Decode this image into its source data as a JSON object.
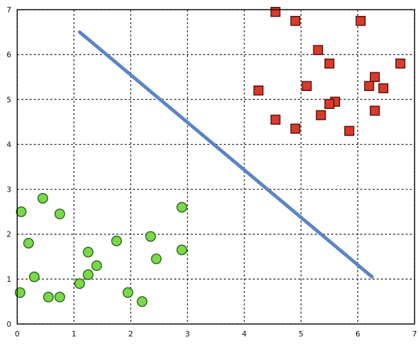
{
  "chart_data": {
    "type": "scatter",
    "title": "",
    "xlabel": "",
    "ylabel": "",
    "xlim": [
      0,
      7
    ],
    "ylim": [
      0,
      7
    ],
    "xticks": [
      "0",
      "1",
      "2",
      "3",
      "4",
      "5",
      "6",
      "7"
    ],
    "yticks": [
      "0",
      "1",
      "2",
      "3",
      "4",
      "5",
      "6",
      "7"
    ],
    "grid": true,
    "series": [
      {
        "marker": "circle",
        "color": "#7ad84a",
        "stroke": "#2f6b1e",
        "points": [
          [
            0.07,
            2.5
          ],
          [
            0.45,
            2.8
          ],
          [
            0.2,
            1.8
          ],
          [
            0.3,
            1.05
          ],
          [
            0.05,
            0.7
          ],
          [
            0.55,
            0.6
          ],
          [
            0.75,
            0.6
          ],
          [
            0.75,
            2.45
          ],
          [
            1.1,
            0.9
          ],
          [
            1.25,
            1.1
          ],
          [
            1.25,
            1.6
          ],
          [
            1.4,
            1.3
          ],
          [
            1.75,
            1.85
          ],
          [
            1.95,
            0.7
          ],
          [
            2.2,
            0.5
          ],
          [
            2.35,
            1.95
          ],
          [
            2.45,
            1.45
          ],
          [
            2.9,
            2.6
          ],
          [
            2.9,
            1.65
          ]
        ]
      },
      {
        "marker": "square",
        "color": "#d93a2b",
        "stroke": "#5a120c",
        "points": [
          [
            4.55,
            6.95
          ],
          [
            4.9,
            6.75
          ],
          [
            6.05,
            6.75
          ],
          [
            5.3,
            6.1
          ],
          [
            5.5,
            5.8
          ],
          [
            6.75,
            5.8
          ],
          [
            4.25,
            5.2
          ],
          [
            5.1,
            5.3
          ],
          [
            6.3,
            5.5
          ],
          [
            6.2,
            5.3
          ],
          [
            6.45,
            5.25
          ],
          [
            5.6,
            4.95
          ],
          [
            5.5,
            4.9
          ],
          [
            6.3,
            4.75
          ],
          [
            5.35,
            4.65
          ],
          [
            4.55,
            4.55
          ],
          [
            4.9,
            4.35
          ],
          [
            5.85,
            4.3
          ]
        ]
      }
    ],
    "decision_line": {
      "x": [
        1.1,
        6.25
      ],
      "y": [
        6.5,
        1.05
      ],
      "color": "#5b84c4"
    }
  }
}
